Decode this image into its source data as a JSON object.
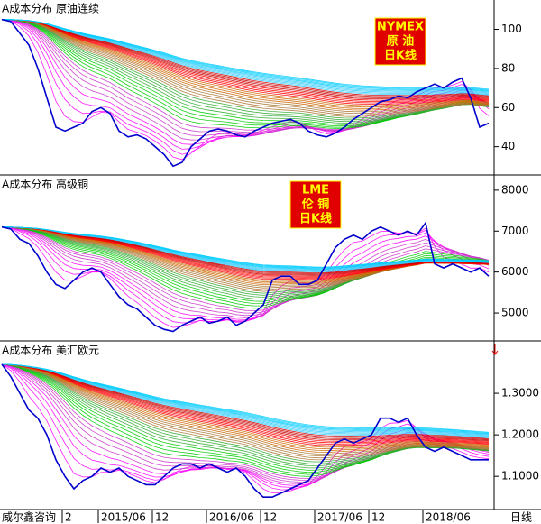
{
  "chart_data": [
    {
      "type": "line",
      "title": "A成本分布 原油连续",
      "badge": [
        "NYMEX",
        "原 油",
        "日K线"
      ],
      "ylim": [
        26,
        115
      ],
      "yticks": [
        40,
        60,
        80,
        100
      ],
      "color": "#0000cc",
      "fan_colors": [
        "#ff00ff",
        "#cc33cc",
        "#00cc00",
        "#33aa33",
        "#aa7733",
        "#cc6600",
        "#ff0000",
        "#cc0000",
        "#33ccff",
        "#00ccff"
      ],
      "values": [
        105,
        104,
        98,
        92,
        80,
        65,
        50,
        48,
        50,
        52,
        58,
        60,
        57,
        48,
        45,
        46,
        44,
        40,
        36,
        30,
        32,
        40,
        44,
        48,
        49,
        48,
        46,
        45,
        48,
        50,
        52,
        53,
        54,
        52,
        48,
        46,
        45,
        47,
        50,
        54,
        57,
        60,
        63,
        64,
        66,
        65,
        68,
        70,
        72,
        70,
        73,
        75,
        65,
        50,
        52
      ]
    },
    {
      "type": "line",
      "title": "A成本分布 高级铜",
      "badge": [
        "LME",
        "伦 铜",
        "日K线"
      ],
      "ylim": [
        4340,
        8350
      ],
      "yticks": [
        5000,
        6000,
        7000,
        8000
      ],
      "color": "#0000cc",
      "fan_colors": [
        "#ff00ff",
        "#cc33cc",
        "#00cc00",
        "#33aa33",
        "#aa7733",
        "#cc6600",
        "#ff0000",
        "#cc0000",
        "#33ccff",
        "#00ccff"
      ],
      "values": [
        7100,
        7050,
        6800,
        6700,
        6400,
        6000,
        5700,
        5600,
        5800,
        6000,
        6100,
        6000,
        5700,
        5400,
        5200,
        5100,
        4900,
        4700,
        4600,
        4550,
        4700,
        4800,
        4900,
        4750,
        4800,
        4900,
        4700,
        4800,
        5000,
        5200,
        5800,
        5900,
        5900,
        5700,
        5700,
        5800,
        6200,
        6600,
        6800,
        6900,
        6800,
        7000,
        7100,
        7000,
        6900,
        7000,
        6900,
        7200,
        6200,
        6100,
        6200,
        6100,
        6000,
        6100,
        5900
      ]
    },
    {
      "type": "line",
      "title": "A成本分布 美汇欧元",
      "ylim": [
        1.02,
        1.424
      ],
      "yticks": [
        {
          "value": 1.1,
          "label": "1.1000"
        },
        {
          "value": 1.2,
          "label": "1.2000"
        },
        {
          "value": 1.3,
          "label": "1.3000"
        }
      ],
      "color": "#0000cc",
      "fan_colors": [
        "#ff00ff",
        "#cc33cc",
        "#00cc00",
        "#33aa33",
        "#aa7733",
        "#cc6600",
        "#ff0000",
        "#cc0000",
        "#33ccff",
        "#00ccff"
      ],
      "values": [
        1.37,
        1.34,
        1.3,
        1.26,
        1.24,
        1.2,
        1.14,
        1.1,
        1.07,
        1.09,
        1.1,
        1.12,
        1.11,
        1.12,
        1.1,
        1.09,
        1.08,
        1.08,
        1.1,
        1.12,
        1.13,
        1.13,
        1.12,
        1.13,
        1.12,
        1.11,
        1.12,
        1.1,
        1.07,
        1.05,
        1.05,
        1.06,
        1.07,
        1.08,
        1.09,
        1.12,
        1.15,
        1.18,
        1.19,
        1.18,
        1.19,
        1.2,
        1.24,
        1.24,
        1.23,
        1.24,
        1.2,
        1.17,
        1.16,
        1.17,
        1.16,
        1.15,
        1.14,
        1.14,
        1.14
      ],
      "categories": [
        null,
        null,
        null,
        null,
        null,
        null,
        null,
        "2",
        null,
        null,
        null,
        "2015/06",
        null,
        null,
        null,
        null,
        null,
        "12",
        null,
        null,
        null,
        null,
        null,
        "2016/06",
        null,
        null,
        null,
        null,
        null,
        "12",
        null,
        null,
        null,
        null,
        null,
        "2017/06",
        null,
        null,
        null,
        null,
        null,
        "12",
        null,
        null,
        null,
        null,
        null,
        "2018/06",
        null,
        null,
        null,
        null,
        null,
        null,
        null
      ]
    }
  ],
  "footer": {
    "left": "威尔鑫咨询",
    "right": "日线"
  }
}
